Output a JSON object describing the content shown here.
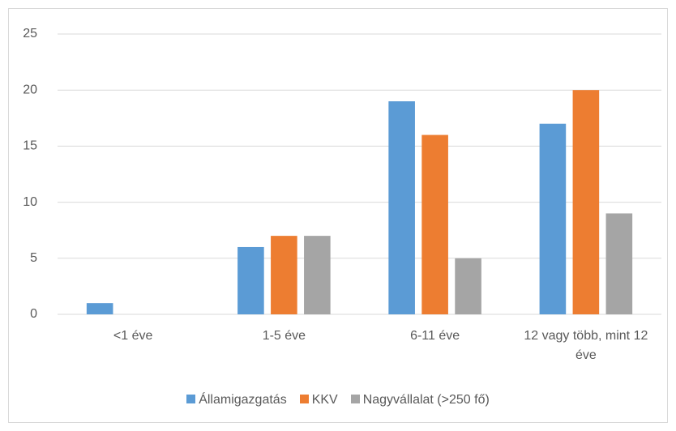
{
  "chart_data": {
    "type": "bar",
    "categories": [
      "<1 éve",
      "1-5 éve",
      "6-11 éve",
      "12 vagy több, mint 12 éve"
    ],
    "series": [
      {
        "name": "Államigazgatás",
        "color": "#5b9bd5",
        "values": [
          1,
          6,
          19,
          17
        ]
      },
      {
        "name": "KKV",
        "color": "#ed7d31",
        "values": [
          0,
          7,
          16,
          20
        ]
      },
      {
        "name": "Nagyvállalat (>250 fő)",
        "color": "#a5a5a5",
        "values": [
          0,
          7,
          5,
          9
        ]
      }
    ],
    "ylim": [
      0,
      25
    ],
    "yticks": [
      0,
      5,
      10,
      15,
      20,
      25
    ],
    "grid": true,
    "legend": "bottom"
  }
}
